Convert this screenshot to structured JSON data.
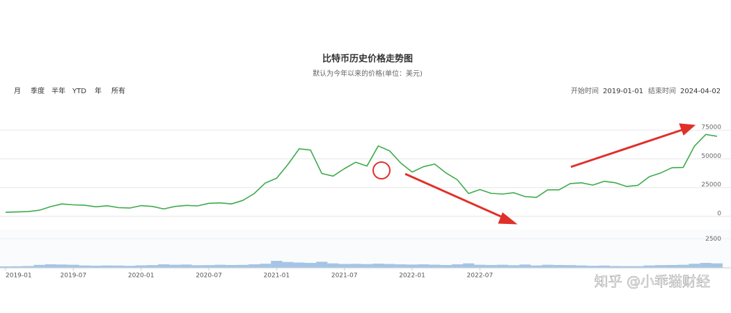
{
  "chart_data": {
    "type": "line",
    "title": "比特币历史价格走势图",
    "subtitle": "默认为今年以来的价格(单位：美元)",
    "range_buttons": [
      "月",
      "季度",
      "半年",
      "YTD",
      "年",
      "所有"
    ],
    "start_label": "开始时间",
    "start_date": "2019-01-01",
    "end_label": "结束时间",
    "end_date": "2024-04-02",
    "watermark": "知乎 @小乖猫财经",
    "x": [
      "2019-01",
      "2019-02",
      "2019-03",
      "2019-04",
      "2019-05",
      "2019-06",
      "2019-07",
      "2019-08",
      "2019-09",
      "2019-10",
      "2019-11",
      "2019-12",
      "2020-01",
      "2020-02",
      "2020-03",
      "2020-04",
      "2020-05",
      "2020-06",
      "2020-07",
      "2020-08",
      "2020-09",
      "2020-10",
      "2020-11",
      "2020-12",
      "2021-01",
      "2021-02",
      "2021-03",
      "2021-04",
      "2021-05",
      "2021-06",
      "2021-07",
      "2021-08",
      "2021-09",
      "2021-10",
      "2021-11",
      "2021-12",
      "2022-01",
      "2022-02",
      "2022-03",
      "2022-04",
      "2022-05",
      "2022-06",
      "2022-07",
      "2022-08",
      "2022-09",
      "2022-10",
      "2022-11",
      "2022-12",
      "2023-01",
      "2023-02",
      "2023-03",
      "2023-04",
      "2023-05",
      "2023-06",
      "2023-07",
      "2023-08",
      "2023-09",
      "2023-10",
      "2023-11",
      "2023-12",
      "2024-01",
      "2024-02",
      "2024-03",
      "2024-04"
    ],
    "series": [
      {
        "name": "价格",
        "color": "#3daa4a",
        "values": [
          3500,
          3800,
          4100,
          5300,
          8500,
          10800,
          10000,
          9600,
          8300,
          9200,
          7600,
          7200,
          9300,
          8600,
          6400,
          8600,
          9500,
          9100,
          11300,
          11700,
          10800,
          13800,
          19700,
          29000,
          33100,
          45200,
          58800,
          57700,
          37300,
          35000,
          41500,
          47100,
          43800,
          61300,
          57000,
          46300,
          38500,
          43200,
          45500,
          37700,
          31800,
          19800,
          23300,
          20000,
          19400,
          20500,
          17200,
          16500,
          23100,
          23100,
          28500,
          29200,
          27200,
          30500,
          29200,
          26000,
          27000,
          34500,
          37700,
          42300,
          42600,
          61200,
          71300,
          69700
        ]
      }
    ],
    "ylim": [
      0,
      97500
    ],
    "yticks": [
      0,
      25000,
      50000,
      75000
    ],
    "xticks": [
      "2019-01",
      "2019-07",
      "2020-01",
      "2020-07",
      "2021-01",
      "2021-07",
      "2022-01",
      "2022-07"
    ],
    "navigator": {
      "color": "#8fb8e0",
      "ylim": [
        0,
        3000
      ],
      "yticks": [
        2500
      ],
      "values": [
        120,
        130,
        150,
        250,
        300,
        280,
        260,
        200,
        180,
        200,
        190,
        170,
        210,
        230,
        300,
        260,
        280,
        220,
        230,
        260,
        240,
        250,
        300,
        350,
        600,
        500,
        450,
        420,
        520,
        380,
        330,
        340,
        320,
        360,
        330,
        300,
        280,
        300,
        270,
        240,
        300,
        380,
        260,
        240,
        260,
        220,
        280,
        200,
        260,
        240,
        230,
        200,
        170,
        190,
        150,
        140,
        140,
        200,
        230,
        240,
        260,
        350,
        420,
        380
      ]
    }
  }
}
